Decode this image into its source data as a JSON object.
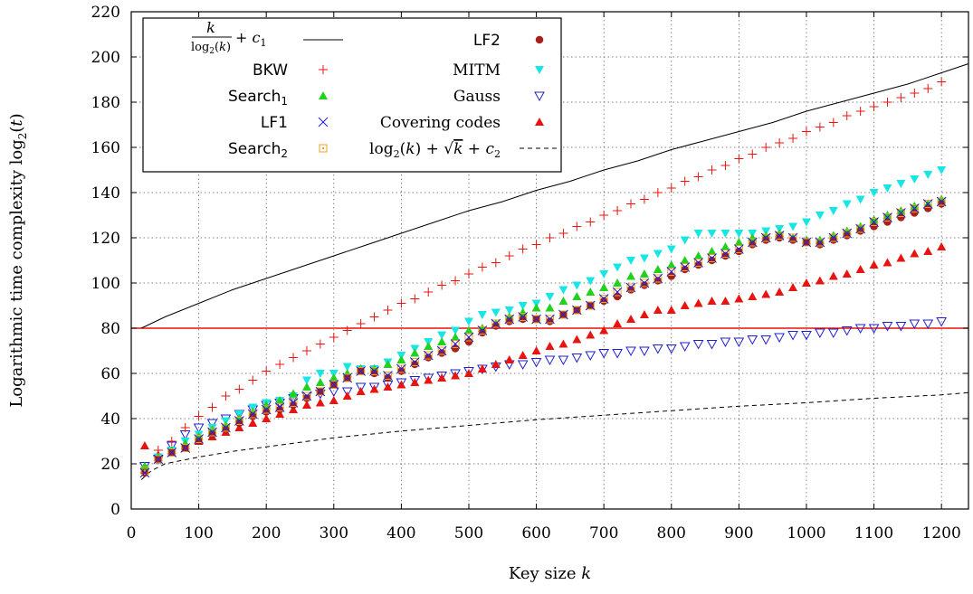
{
  "chart_data": {
    "type": "scatter",
    "xlabel": "Key size k",
    "ylabel": "Logarithmic time complexity log2(t)",
    "xlim": [
      0,
      1240
    ],
    "ylim": [
      0,
      220
    ],
    "x_ticks": [
      "0",
      "100",
      "200",
      "300",
      "400",
      "500",
      "600",
      "700",
      "800",
      "900",
      "1000",
      "1100",
      "1200"
    ],
    "y_ticks": [
      "0",
      "20",
      "40",
      "60",
      "80",
      "100",
      "120",
      "140",
      "160",
      "180",
      "200",
      "220"
    ],
    "grid": "dotted",
    "legend_position": "top-left",
    "reference_line": {
      "y": 80,
      "color": "#e8140f"
    },
    "curves": [
      {
        "name": "k/log2(k) + c1",
        "style": "solid",
        "color": "#000000",
        "x": [
          15,
          50,
          100,
          150,
          200,
          250,
          300,
          350,
          400,
          450,
          500,
          550,
          600,
          650,
          700,
          750,
          800,
          850,
          900,
          950,
          1000,
          1050,
          1100,
          1150,
          1200,
          1240
        ],
        "y": [
          80,
          85,
          91,
          97,
          102,
          107,
          112,
          117,
          122,
          127,
          132,
          136,
          141,
          145,
          150,
          154,
          159,
          163,
          167,
          171,
          176,
          180,
          184,
          188,
          193,
          197
        ]
      },
      {
        "name": "log2(k) + √k + c2",
        "style": "dashed",
        "color": "#000000",
        "x": [
          15,
          30,
          50,
          100,
          150,
          200,
          300,
          400,
          500,
          600,
          700,
          800,
          900,
          1000,
          1100,
          1200,
          1240
        ],
        "y": [
          13,
          17,
          20,
          23,
          25.5,
          27.5,
          31.5,
          34.5,
          37,
          39.5,
          41.5,
          43.5,
          45.5,
          47,
          49,
          50.5,
          51.5
        ]
      }
    ],
    "series": [
      {
        "name": "BKW",
        "marker": "plus",
        "color": "#e8140f",
        "x": [
          20,
          40,
          60,
          80,
          100,
          120,
          140,
          160,
          180,
          200,
          220,
          240,
          260,
          280,
          300,
          320,
          340,
          360,
          380,
          400,
          420,
          440,
          460,
          480,
          500,
          520,
          540,
          560,
          580,
          600,
          620,
          640,
          660,
          680,
          700,
          720,
          740,
          760,
          780,
          800,
          820,
          840,
          860,
          880,
          900,
          920,
          940,
          960,
          980,
          1000,
          1020,
          1040,
          1060,
          1080,
          1100,
          1120,
          1140,
          1160,
          1180,
          1200
        ],
        "y": [
          16,
          26,
          30,
          36,
          41,
          45,
          50,
          53,
          57,
          61,
          64,
          67,
          70,
          73,
          76,
          79,
          82,
          85,
          88,
          91,
          93,
          96,
          99,
          101,
          104,
          107,
          109,
          112,
          115,
          117,
          120,
          122,
          125,
          127,
          130,
          132,
          135,
          137,
          140,
          142,
          145,
          147,
          150,
          152,
          155,
          157,
          160,
          162,
          164,
          167,
          169,
          171,
          174,
          176,
          178,
          180,
          182,
          184,
          186,
          189
        ]
      },
      {
        "name": "Search1",
        "marker": "triangle-up",
        "color": "#22d11e",
        "x": [
          20,
          40,
          60,
          80,
          100,
          120,
          140,
          160,
          180,
          200,
          220,
          240,
          260,
          280,
          300,
          320,
          340,
          360,
          380,
          400,
          420,
          440,
          460,
          480,
          500,
          520,
          540,
          560,
          580,
          600,
          620,
          640,
          660,
          680,
          700,
          720,
          740,
          760,
          780,
          800,
          820,
          840,
          860,
          880,
          900,
          920,
          940,
          960,
          980,
          1000,
          1020,
          1040,
          1060,
          1080,
          1100,
          1120,
          1140,
          1160,
          1180,
          1200
        ],
        "y": [
          19,
          23,
          26,
          29,
          32,
          35,
          37,
          40,
          43,
          46,
          48,
          51,
          54,
          56,
          58,
          60,
          62,
          62,
          64,
          66,
          69,
          72,
          74,
          76,
          79,
          80,
          82,
          85,
          87,
          89,
          89,
          92,
          94,
          96,
          98,
          100,
          103,
          104,
          106,
          108,
          110,
          112,
          114,
          116,
          118,
          120,
          121,
          122,
          120,
          119,
          119,
          121,
          123,
          125,
          128,
          130,
          132,
          134,
          135,
          137
        ]
      },
      {
        "name": "LF1",
        "marker": "cross",
        "color": "#1f1fcf",
        "x": [
          20,
          40,
          60,
          80,
          100,
          120,
          140,
          160,
          180,
          200,
          220,
          240,
          260,
          280,
          300,
          320,
          340,
          360,
          380,
          400,
          420,
          440,
          460,
          480,
          500,
          520,
          540,
          560,
          580,
          600,
          620,
          640,
          660,
          680,
          700,
          720,
          740,
          760,
          780,
          800,
          820,
          840,
          860,
          880,
          900,
          920,
          940,
          960,
          980,
          1000,
          1020,
          1040,
          1060,
          1080,
          1100,
          1120,
          1140,
          1160,
          1180,
          1200
        ],
        "y": [
          16,
          22,
          25,
          27,
          31,
          34,
          36,
          39,
          42,
          44,
          45,
          47,
          50,
          52,
          55,
          58,
          61,
          61,
          59,
          62,
          65,
          68,
          70,
          73,
          76,
          79,
          82,
          84,
          85,
          84,
          84,
          86,
          88,
          90,
          93,
          96,
          98,
          100,
          102,
          105,
          107,
          109,
          111,
          113,
          115,
          118,
          120,
          121,
          120,
          118,
          118,
          120,
          122,
          124,
          127,
          129,
          131,
          133,
          135,
          136
        ]
      },
      {
        "name": "Search2",
        "marker": "square-open",
        "color": "#f0a020",
        "x": [
          20,
          40,
          60,
          80,
          100,
          120,
          140,
          160,
          180,
          200,
          220,
          240,
          260,
          280,
          300,
          320,
          340,
          360,
          380,
          400,
          420,
          440,
          460,
          480,
          500,
          520,
          540,
          560,
          580,
          600,
          620,
          640,
          660,
          680,
          700,
          720,
          740,
          760,
          780,
          800,
          820,
          840,
          860,
          880,
          900,
          920,
          940,
          960,
          980,
          1000,
          1020,
          1040,
          1060,
          1080,
          1100,
          1120,
          1140,
          1160,
          1180,
          1200
        ],
        "y": [
          17,
          22,
          25,
          27,
          31,
          34,
          36,
          39,
          42,
          44,
          45,
          47,
          50,
          52,
          55,
          58,
          61,
          61,
          59,
          62,
          65,
          68,
          70,
          73,
          76,
          79,
          82,
          84,
          85,
          84,
          84,
          86,
          88,
          90,
          93,
          96,
          98,
          100,
          102,
          105,
          107,
          109,
          111,
          113,
          115,
          118,
          120,
          121,
          120,
          118,
          118,
          120,
          122,
          124,
          127,
          129,
          131,
          133,
          135,
          136
        ]
      },
      {
        "name": "LF2",
        "marker": "circle",
        "color": "#a8201a",
        "x": [
          20,
          40,
          60,
          80,
          100,
          120,
          140,
          160,
          180,
          200,
          220,
          240,
          260,
          280,
          300,
          320,
          340,
          360,
          380,
          400,
          420,
          440,
          460,
          480,
          500,
          520,
          540,
          560,
          580,
          600,
          620,
          640,
          660,
          680,
          700,
          720,
          740,
          760,
          780,
          800,
          820,
          840,
          860,
          880,
          900,
          920,
          940,
          960,
          980,
          1000,
          1020,
          1040,
          1060,
          1080,
          1100,
          1120,
          1140,
          1160,
          1180,
          1200
        ],
        "y": [
          16,
          22,
          25,
          27,
          30,
          33,
          35,
          38,
          41,
          43,
          44,
          46,
          49,
          52,
          55,
          58,
          61,
          60,
          58,
          61,
          64,
          67,
          69,
          71,
          74,
          78,
          81,
          83,
          84,
          84,
          83,
          86,
          88,
          90,
          92,
          94,
          97,
          99,
          101,
          103,
          106,
          108,
          110,
          112,
          114,
          117,
          119,
          120,
          119,
          118,
          117,
          119,
          121,
          123,
          125,
          127,
          129,
          131,
          133,
          135
        ]
      },
      {
        "name": "MITM",
        "marker": "triangle-down",
        "color": "#18e6e6",
        "x": [
          20,
          40,
          60,
          80,
          100,
          120,
          140,
          160,
          180,
          200,
          220,
          240,
          260,
          280,
          300,
          320,
          340,
          360,
          380,
          400,
          420,
          440,
          460,
          480,
          500,
          520,
          540,
          560,
          580,
          600,
          620,
          640,
          660,
          680,
          700,
          720,
          740,
          760,
          780,
          800,
          820,
          840,
          860,
          880,
          900,
          920,
          940,
          960,
          980,
          1000,
          1020,
          1040,
          1060,
          1080,
          1100,
          1120,
          1140,
          1160,
          1180,
          1200
        ],
        "y": [
          17,
          23,
          26,
          30,
          33,
          36,
          39,
          42,
          45,
          47,
          48,
          50,
          57,
          60,
          60,
          63,
          62,
          62,
          65,
          68,
          71,
          74,
          77,
          79,
          83,
          86,
          87,
          88,
          90,
          91,
          94,
          97,
          99,
          101,
          104,
          107,
          110,
          111,
          113,
          115,
          119,
          122,
          122,
          122,
          122,
          122,
          123,
          124,
          125,
          127,
          130,
          132,
          135,
          137,
          140,
          142,
          144,
          146,
          148,
          150
        ]
      },
      {
        "name": "Gauss",
        "marker": "triangle-down-open",
        "color": "#1f1fcf",
        "x": [
          20,
          40,
          60,
          80,
          100,
          120,
          140,
          160,
          180,
          200,
          220,
          240,
          260,
          280,
          300,
          320,
          340,
          360,
          380,
          400,
          420,
          440,
          460,
          480,
          500,
          520,
          540,
          560,
          580,
          600,
          620,
          640,
          660,
          680,
          700,
          720,
          740,
          760,
          780,
          800,
          820,
          840,
          860,
          880,
          900,
          920,
          940,
          960,
          980,
          1000,
          1020,
          1040,
          1060,
          1080,
          1100,
          1120,
          1140,
          1160,
          1180,
          1200
        ],
        "y": [
          19,
          22,
          28,
          33,
          36,
          38,
          40,
          42,
          44,
          46,
          47,
          49,
          50,
          51,
          52,
          52,
          54,
          54,
          55,
          56,
          57,
          58,
          59,
          60,
          61,
          62,
          63,
          64,
          64,
          65,
          66,
          66,
          67,
          68,
          69,
          69,
          70,
          70,
          71,
          71,
          72,
          73,
          73,
          74,
          74,
          75,
          75,
          76,
          77,
          77,
          78,
          78,
          79,
          80,
          80,
          81,
          81,
          82,
          82,
          83
        ]
      },
      {
        "name": "Covering codes",
        "marker": "triangle-up",
        "color": "#e8140f",
        "x": [
          20,
          40,
          60,
          80,
          100,
          120,
          140,
          160,
          180,
          200,
          220,
          240,
          260,
          280,
          300,
          320,
          340,
          360,
          380,
          400,
          420,
          440,
          460,
          480,
          500,
          520,
          540,
          560,
          580,
          600,
          620,
          640,
          660,
          680,
          700,
          720,
          740,
          760,
          780,
          800,
          820,
          840,
          860,
          880,
          900,
          920,
          940,
          960,
          980,
          1000,
          1020,
          1040,
          1060,
          1080,
          1100,
          1120,
          1140,
          1160,
          1180,
          1200
        ],
        "y": [
          28,
          24,
          26,
          28,
          30,
          32,
          34,
          36,
          38,
          40,
          42,
          44,
          46,
          47,
          48,
          50,
          52,
          53,
          54,
          55,
          56,
          57,
          58,
          59,
          60,
          62,
          64,
          66,
          68,
          70,
          72,
          73,
          75,
          77,
          79,
          82,
          84,
          86,
          88,
          88,
          90,
          91,
          92,
          92,
          93,
          94,
          95,
          96,
          98,
          100,
          101,
          103,
          104,
          106,
          108,
          109,
          111,
          113,
          114,
          116
        ]
      }
    ]
  },
  "legend": {
    "col1": [
      {
        "label_top": "k",
        "label_bottom": "log2(k)",
        "label_tail": "+ c1",
        "key": "k/log2(k) + c1"
      },
      {
        "label": "BKW",
        "key": "BKW"
      },
      {
        "label": "Search",
        "sub": "1",
        "key": "Search1"
      },
      {
        "label": "LF1",
        "key": "LF1"
      },
      {
        "label": "Search",
        "sub": "2",
        "key": "Search2"
      }
    ],
    "col2": [
      {
        "label": "LF2",
        "key": "LF2"
      },
      {
        "label": "MITM",
        "key": "MITM"
      },
      {
        "label": "Gauss",
        "key": "Gauss"
      },
      {
        "label": "Covering codes",
        "key": "Covering codes"
      },
      {
        "label": "log2(k) + √k + c2",
        "key": "log2(k) + √k + c2"
      }
    ]
  }
}
